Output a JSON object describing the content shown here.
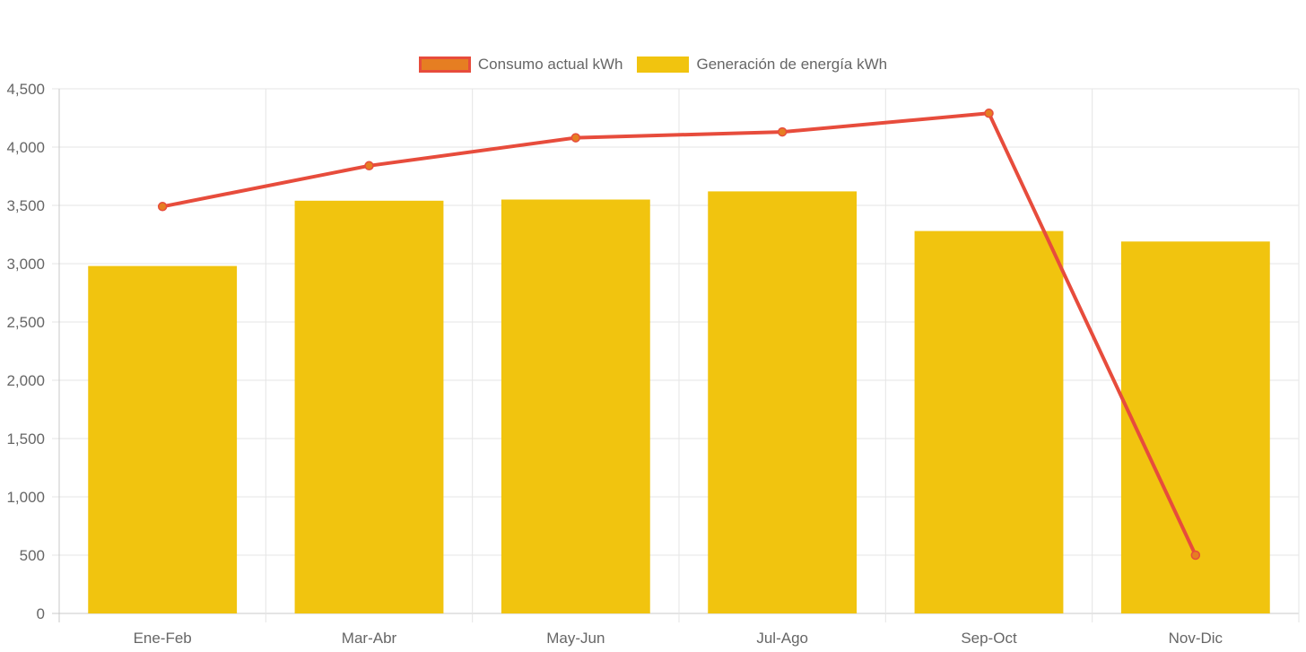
{
  "chart_data": {
    "type": "bar",
    "categories": [
      "Ene-Feb",
      "Mar-Abr",
      "May-Jun",
      "Jul-Ago",
      "Sep-Oct",
      "Nov-Dic"
    ],
    "series": [
      {
        "name": "Consumo actual kWh",
        "type": "line",
        "color": "#e74c3c",
        "point_color": "#e67e22",
        "values": [
          3490,
          3840,
          4080,
          4130,
          4290,
          500
        ]
      },
      {
        "name": "Generación de energía kWh",
        "type": "bar",
        "color": "#f1c40f",
        "values": [
          2980,
          3540,
          3550,
          3620,
          3280,
          3190
        ]
      }
    ],
    "ylim": [
      0,
      4500
    ],
    "yticks": [
      "0",
      "500",
      "1,000",
      "1,500",
      "2,000",
      "2,500",
      "3,000",
      "3,500",
      "4,000",
      "4,500"
    ],
    "grid": true,
    "legend_position": "top-center"
  }
}
